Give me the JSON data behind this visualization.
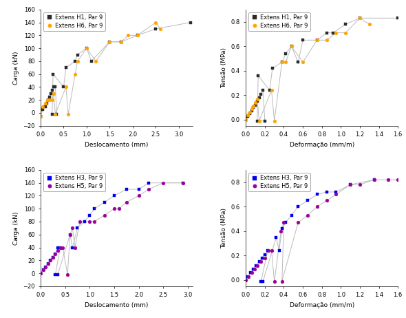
{
  "top_left": {
    "h1_x": [
      0.0,
      0.05,
      0.1,
      0.13,
      0.17,
      0.2,
      0.23,
      0.26,
      0.29,
      0.32,
      0.35,
      0.25,
      0.27,
      0.5,
      0.55,
      0.75,
      0.8,
      1.0,
      1.1,
      1.5,
      1.75,
      2.1,
      2.5,
      3.25
    ],
    "h1_y": [
      -5,
      5,
      10,
      15,
      20,
      25,
      30,
      35,
      40,
      40,
      -2,
      -2,
      60,
      40,
      70,
      80,
      90,
      100,
      80,
      110,
      110,
      120,
      130,
      140
    ],
    "h6_x": [
      0.0,
      0.05,
      0.1,
      0.15,
      0.2,
      0.25,
      0.28,
      0.32,
      0.55,
      0.6,
      0.75,
      0.8,
      1.0,
      1.2,
      1.5,
      1.75,
      1.9,
      2.1,
      2.5,
      2.6
    ],
    "h6_y": [
      -5,
      10,
      15,
      20,
      20,
      20,
      30,
      -2,
      40,
      -2,
      60,
      80,
      100,
      80,
      110,
      110,
      120,
      120,
      140,
      130
    ],
    "xlabel": "Deslocamento (mm)",
    "ylabel": "Carga (kN)",
    "xlim": [
      0,
      3.3
    ],
    "ylim": [
      -20,
      160
    ],
    "yticks": [
      -20,
      0,
      20,
      40,
      60,
      80,
      100,
      120,
      140,
      160
    ],
    "xticks": [
      0.0,
      0.5,
      1.0,
      1.5,
      2.0,
      2.5,
      3.0
    ],
    "legend": [
      "Extens H1, Par 9",
      "Extens H6, Par 9"
    ],
    "color1": "#2b2b2b",
    "color2": "#FFA500",
    "marker1": "s",
    "marker2": "o"
  },
  "top_right": {
    "h1_x": [
      0.0,
      0.02,
      0.04,
      0.06,
      0.08,
      0.1,
      0.12,
      0.14,
      0.16,
      0.18,
      0.2,
      0.12,
      0.13,
      0.25,
      0.28,
      0.38,
      0.42,
      0.48,
      0.55,
      0.6,
      0.75,
      0.85,
      0.92,
      1.05,
      1.2,
      1.6
    ],
    "h1_y": [
      0.0,
      0.03,
      0.05,
      0.07,
      0.1,
      0.12,
      0.15,
      0.18,
      0.21,
      0.24,
      -0.01,
      -0.01,
      0.36,
      0.24,
      0.42,
      0.47,
      0.54,
      0.6,
      0.47,
      0.65,
      0.65,
      0.71,
      0.71,
      0.78,
      0.83,
      0.83
    ],
    "h6_x": [
      0.0,
      0.02,
      0.04,
      0.06,
      0.08,
      0.1,
      0.12,
      0.14,
      0.27,
      0.3,
      0.38,
      0.42,
      0.48,
      0.6,
      0.75,
      0.85,
      0.95,
      1.05,
      1.2,
      1.3
    ],
    "h6_y": [
      0.0,
      0.04,
      0.06,
      0.09,
      0.11,
      0.14,
      0.17,
      -0.01,
      0.24,
      -0.01,
      0.47,
      0.47,
      0.6,
      0.47,
      0.65,
      0.65,
      0.71,
      0.71,
      0.83,
      0.78
    ],
    "xlabel": "Deformação (mm/m)",
    "ylabel": "Tensão (MPa)",
    "xlim": [
      0,
      1.6
    ],
    "ylim": [
      -0.05,
      0.9
    ],
    "yticks": [
      0.0,
      0.2,
      0.4,
      0.6,
      0.8
    ],
    "xticks": [
      0.0,
      0.2,
      0.4,
      0.6,
      0.8,
      1.0,
      1.2,
      1.4,
      1.6
    ],
    "legend": [
      "Extens H1, Par 9",
      "Extens H6, Par 9"
    ],
    "color1": "#2b2b2b",
    "color2": "#FFA500",
    "marker1": "s",
    "marker2": "o"
  },
  "bot_left": {
    "h3_x": [
      0.0,
      0.05,
      0.1,
      0.15,
      0.2,
      0.25,
      0.3,
      0.35,
      0.4,
      0.3,
      0.35,
      0.6,
      0.65,
      0.75,
      0.9,
      1.0,
      1.1,
      1.3,
      1.5,
      1.75,
      2.0,
      2.2,
      2.9
    ],
    "h3_y": [
      0,
      5,
      10,
      15,
      20,
      25,
      30,
      40,
      40,
      -2,
      -2,
      60,
      40,
      70,
      80,
      90,
      100,
      110,
      120,
      130,
      130,
      140,
      140
    ],
    "h5_x": [
      0.0,
      0.05,
      0.1,
      0.15,
      0.2,
      0.25,
      0.3,
      0.35,
      0.4,
      0.45,
      0.55,
      0.6,
      0.65,
      0.7,
      0.8,
      1.0,
      1.1,
      1.3,
      1.5,
      1.6,
      1.75,
      2.0,
      2.2,
      2.5,
      2.9
    ],
    "h5_y": [
      0,
      5,
      10,
      15,
      20,
      25,
      30,
      35,
      40,
      40,
      -2,
      60,
      70,
      40,
      80,
      80,
      80,
      90,
      100,
      100,
      110,
      120,
      130,
      140,
      140
    ],
    "xlabel": "Deslocamento (mm)",
    "ylabel": "Carga (kN)",
    "xlim": [
      0,
      3.1
    ],
    "ylim": [
      -20,
      160
    ],
    "yticks": [
      -20,
      0,
      20,
      40,
      60,
      80,
      100,
      120,
      140,
      160
    ],
    "xticks": [
      0.0,
      0.5,
      1.0,
      1.5,
      2.0,
      2.5,
      3.0
    ],
    "legend": [
      "Extens H3, Par 9",
      "Extens H5, Par 9"
    ],
    "color1": "#0000EE",
    "color2": "#990099",
    "marker1": "s",
    "marker2": "o"
  },
  "bot_right": {
    "h3_x": [
      0.0,
      0.02,
      0.05,
      0.08,
      0.11,
      0.14,
      0.17,
      0.2,
      0.23,
      0.16,
      0.18,
      0.32,
      0.35,
      0.38,
      0.42,
      0.48,
      0.55,
      0.65,
      0.75,
      0.85,
      0.95,
      1.1,
      1.35
    ],
    "h3_y": [
      0.0,
      0.03,
      0.06,
      0.09,
      0.12,
      0.15,
      0.18,
      0.21,
      0.24,
      -0.01,
      -0.01,
      0.35,
      0.24,
      0.42,
      0.47,
      0.53,
      0.6,
      0.65,
      0.7,
      0.72,
      0.72,
      0.78,
      0.82
    ],
    "h5_x": [
      0.0,
      0.03,
      0.06,
      0.09,
      0.12,
      0.16,
      0.2,
      0.24,
      0.27,
      0.3,
      0.37,
      0.4,
      0.38,
      0.55,
      0.65,
      0.75,
      0.85,
      0.95,
      1.1,
      1.2,
      1.35,
      1.5,
      1.6
    ],
    "h5_y": [
      0.0,
      0.03,
      0.06,
      0.09,
      0.12,
      0.15,
      0.18,
      0.24,
      0.24,
      -0.01,
      0.4,
      0.47,
      -0.01,
      0.47,
      0.53,
      0.6,
      0.65,
      0.7,
      0.78,
      0.78,
      0.82,
      0.82,
      0.82
    ],
    "xlabel": "Deformação (mm/m)",
    "ylabel": "Tensão (MPa)",
    "xlim": [
      0,
      1.6
    ],
    "ylim": [
      -0.05,
      0.9
    ],
    "yticks": [
      0.0,
      0.2,
      0.4,
      0.6,
      0.8
    ],
    "xticks": [
      0.0,
      0.2,
      0.4,
      0.6,
      0.8,
      1.0,
      1.2,
      1.4,
      1.6
    ],
    "legend": [
      "Extens H3, Par 9",
      "Extens H5, Par 9"
    ],
    "color1": "#0000EE",
    "color2": "#990099",
    "marker1": "s",
    "marker2": "o"
  },
  "line_color": "#BBBBBB",
  "bg_color": "#FFFFFF",
  "font_size": 6.5,
  "tick_size": 6,
  "marker_size": 3.5,
  "line_width": 0.7
}
